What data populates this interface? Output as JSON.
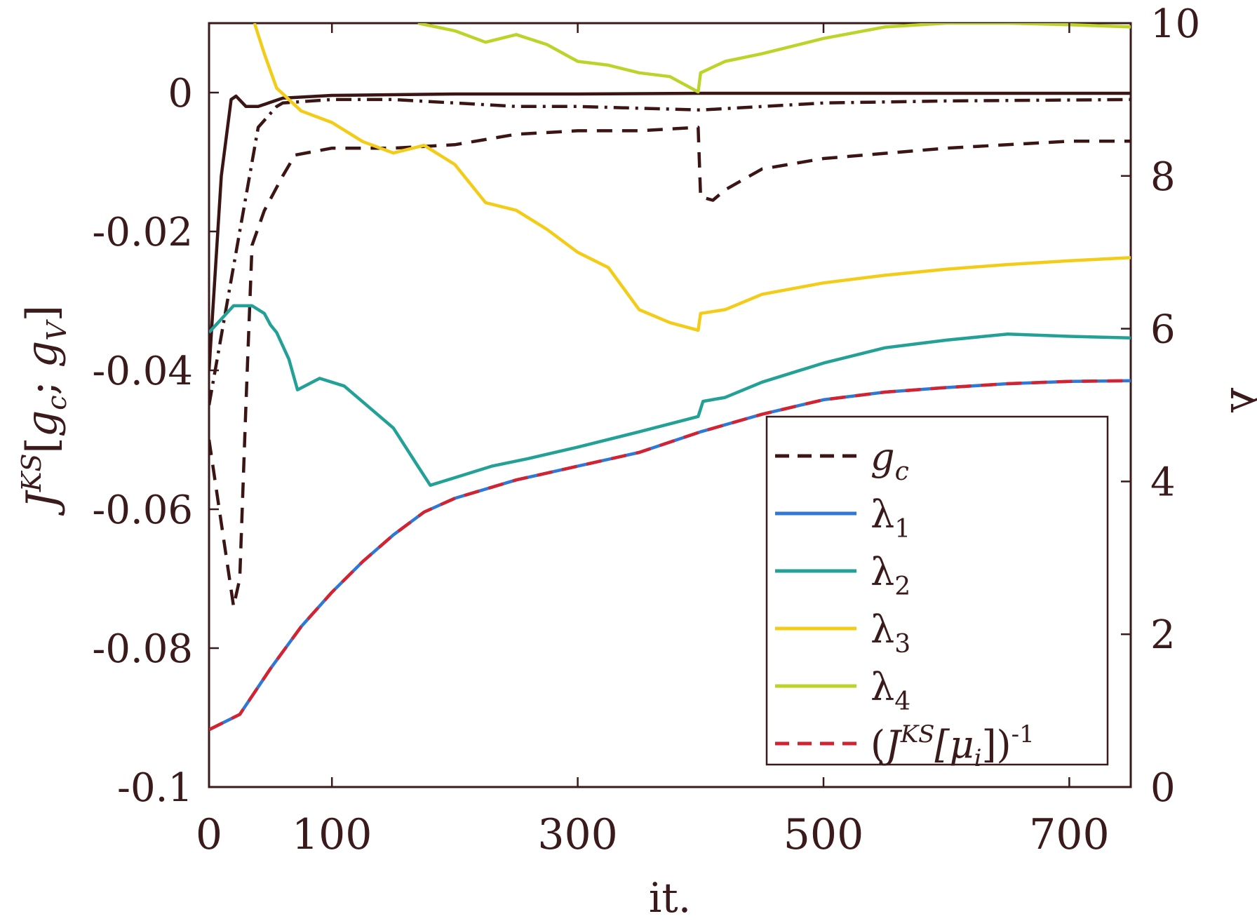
{
  "chart_data": {
    "type": "line",
    "xlabel": "it.",
    "ylabel_left": "J^{KS}[g_c; g_V]",
    "ylabel_left_parts": {
      "main": "J",
      "sup": "KS",
      "bracket_open": "[",
      "g": "g",
      "sub_c": "c",
      "sep": "; ",
      "g2": "g",
      "sub_v": "V",
      "bracket_close": "]"
    },
    "ylabel_right": "λ",
    "xlim": [
      0,
      750
    ],
    "ylim_left": [
      -0.1,
      0.01
    ],
    "ylim_right": [
      0,
      10
    ],
    "xticks": [
      0,
      100,
      300,
      500,
      700
    ],
    "xtick_labels": [
      "0",
      "100",
      "300",
      "500",
      "700"
    ],
    "yticks_left": [
      0,
      -0.02,
      -0.04,
      -0.06,
      -0.08,
      -0.1
    ],
    "ytick_labels_left": [
      "0",
      "-0.02",
      "-0.04",
      "-0.06",
      "-0.08",
      "-0.1"
    ],
    "yticks_right": [
      10,
      8,
      6,
      4,
      2,
      0
    ],
    "ytick_labels_right": [
      "10",
      "8",
      "6",
      "4",
      "2",
      "0"
    ],
    "series": [
      {
        "name": "g_c (solid)",
        "axis": "left",
        "color": "#3b1414",
        "style": "solid",
        "in_legend": false,
        "x": [
          0,
          10,
          18,
          22,
          30,
          40,
          60,
          100,
          150,
          200,
          300,
          400,
          500,
          600,
          750
        ],
        "y": [
          -0.04,
          -0.012,
          -0.001,
          -0.0005,
          -0.002,
          -0.002,
          -0.0008,
          -0.0004,
          -0.0003,
          -0.0002,
          -0.0002,
          -0.0001,
          -0.0001,
          -0.0001,
          -0.0001
        ]
      },
      {
        "name": "g_c (dash-dot)",
        "axis": "left",
        "color": "#3b1414",
        "style": "dashdot",
        "in_legend": false,
        "x": [
          0,
          20,
          40,
          55,
          60,
          100,
          150,
          200,
          250,
          300,
          400,
          500,
          600,
          750
        ],
        "y": [
          -0.045,
          -0.025,
          -0.005,
          -0.002,
          -0.0015,
          -0.001,
          -0.001,
          -0.0015,
          -0.002,
          -0.002,
          -0.0025,
          -0.0015,
          -0.0012,
          -0.001
        ]
      },
      {
        "name": "g_c",
        "axis": "left",
        "color": "#3b1414",
        "style": "dashed",
        "in_legend": true,
        "x": [
          0,
          10,
          20,
          25,
          30,
          35,
          45,
          60,
          70,
          100,
          150,
          200,
          250,
          300,
          350,
          398,
          400,
          410,
          420,
          450,
          500,
          600,
          700,
          750
        ],
        "y": [
          -0.05,
          -0.062,
          -0.074,
          -0.07,
          -0.045,
          -0.022,
          -0.017,
          -0.012,
          -0.009,
          -0.008,
          -0.008,
          -0.0075,
          -0.006,
          -0.0055,
          -0.0055,
          -0.005,
          -0.015,
          -0.0155,
          -0.014,
          -0.011,
          -0.0095,
          -0.008,
          -0.007,
          -0.007
        ]
      },
      {
        "name": "λ1",
        "axis": "right",
        "color": "#2f78d6",
        "style": "solid",
        "in_legend": true,
        "x": [
          0,
          25,
          50,
          75,
          100,
          125,
          150,
          175,
          200,
          250,
          300,
          350,
          400,
          450,
          500,
          550,
          600,
          650,
          700,
          750
        ],
        "y": [
          0.75,
          0.95,
          1.55,
          2.1,
          2.55,
          2.95,
          3.3,
          3.6,
          3.78,
          4.02,
          4.2,
          4.38,
          4.65,
          4.88,
          5.07,
          5.17,
          5.23,
          5.28,
          5.31,
          5.32
        ]
      },
      {
        "name": "λ2",
        "axis": "right",
        "color": "#23a196",
        "style": "solid",
        "in_legend": true,
        "x": [
          0,
          20,
          35,
          45,
          50,
          55,
          65,
          72,
          90,
          110,
          150,
          170,
          180,
          200,
          230,
          260,
          300,
          350,
          398,
          402,
          420,
          450,
          500,
          550,
          600,
          650,
          700,
          750
        ],
        "y": [
          5.95,
          6.3,
          6.3,
          6.2,
          6.05,
          5.95,
          5.6,
          5.2,
          5.35,
          5.25,
          4.7,
          4.2,
          3.95,
          4.05,
          4.2,
          4.3,
          4.45,
          4.65,
          4.85,
          5.05,
          5.1,
          5.3,
          5.55,
          5.75,
          5.85,
          5.93,
          5.9,
          5.88
        ]
      },
      {
        "name": "λ3",
        "axis": "right",
        "color": "#f2cc16",
        "style": "solid",
        "in_legend": true,
        "x": [
          37,
          45,
          55,
          75,
          100,
          125,
          150,
          175,
          200,
          225,
          250,
          275,
          300,
          325,
          350,
          375,
          398,
          400,
          420,
          450,
          500,
          550,
          600,
          650,
          700,
          750
        ],
        "y": [
          10,
          9.6,
          9.15,
          8.85,
          8.7,
          8.45,
          8.3,
          8.4,
          8.15,
          7.65,
          7.55,
          7.3,
          7.0,
          6.8,
          6.25,
          6.08,
          5.98,
          6.2,
          6.25,
          6.45,
          6.6,
          6.7,
          6.78,
          6.84,
          6.89,
          6.93
        ]
      },
      {
        "name": "λ4",
        "axis": "right",
        "color": "#bcd42a",
        "style": "solid",
        "in_legend": true,
        "x": [
          170,
          200,
          225,
          250,
          275,
          300,
          325,
          350,
          375,
          398,
          400,
          420,
          450,
          500,
          550,
          600,
          650,
          700,
          750
        ],
        "y": [
          10,
          9.9,
          9.75,
          9.85,
          9.72,
          9.5,
          9.45,
          9.35,
          9.3,
          9.1,
          9.35,
          9.5,
          9.6,
          9.8,
          9.95,
          10.0,
          10.0,
          9.98,
          9.95
        ]
      },
      {
        "name": "(J^{KS}[μ_i])^{-1}",
        "axis": "right",
        "color": "#d42330",
        "style": "dashed",
        "in_legend": true,
        "x": [
          0,
          25,
          50,
          75,
          100,
          125,
          150,
          175,
          200,
          250,
          300,
          350,
          400,
          450,
          500,
          550,
          600,
          650,
          700,
          750
        ],
        "y": [
          0.75,
          0.95,
          1.55,
          2.1,
          2.55,
          2.95,
          3.3,
          3.6,
          3.78,
          4.02,
          4.2,
          4.38,
          4.65,
          4.88,
          5.07,
          5.17,
          5.23,
          5.28,
          5.31,
          5.32
        ]
      }
    ],
    "legend": {
      "placement": "lower-right",
      "entries": [
        {
          "label": "g",
          "sub": "c",
          "pre": "",
          "post": ""
        },
        {
          "label": "λ",
          "sub": "1",
          "pre": "",
          "post": ""
        },
        {
          "label": "λ",
          "sub": "2",
          "pre": "",
          "post": ""
        },
        {
          "label": "λ",
          "sub": "3",
          "pre": "",
          "post": ""
        },
        {
          "label": "λ",
          "sub": "4",
          "pre": "",
          "post": ""
        },
        {
          "label": "J",
          "sup": "KS",
          "pre": "(",
          "mid": "[μ",
          "sub": "i",
          "post": "])",
          "exp": "-1"
        }
      ]
    },
    "grid": false
  }
}
